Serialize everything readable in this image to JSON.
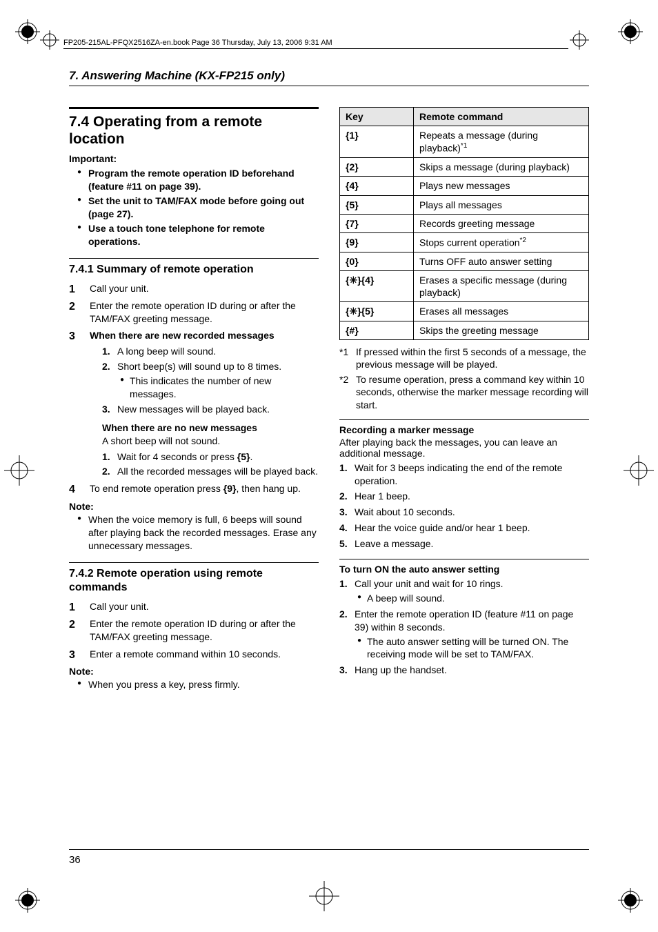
{
  "header": "FP205-215AL-PFQX2516ZA-en.book  Page 36  Thursday, July 13, 2006  9:31 AM",
  "chapter": "7. Answering Machine (KX-FP215 only)",
  "section": {
    "title": "7.4 Operating from a remote location",
    "important_label": "Important:",
    "important": [
      "Program the remote operation ID beforehand (feature #11 on page 39).",
      "Set the unit to TAM/FAX mode before going out (page 27).",
      "Use a touch tone telephone for remote operations."
    ]
  },
  "sub741": {
    "title": "7.4.1 Summary of remote operation",
    "s1": "Call your unit.",
    "s2": "Enter the remote operation ID during or after the TAM/FAX greeting message.",
    "s3_title": "When there are new recorded messages",
    "s3_1": "A long beep will sound.",
    "s3_2": "Short beep(s) will sound up to 8 times.",
    "s3_2_b": "This indicates the number of new messages.",
    "s3_3": "New messages will be played back.",
    "none_title": "When there are no new messages",
    "none_desc": "A short beep will not sound.",
    "none_1a": "Wait for 4 seconds or press ",
    "none_1b": ".",
    "none_2": "All the recorded messages will be played back.",
    "s4a": "To end remote operation press ",
    "s4b": ", then hang up.",
    "note_label": "Note:",
    "note1": "When the voice memory is full, 6 beeps will sound after playing back the recorded messages. Erase any unnecessary messages."
  },
  "sub742": {
    "title": "7.4.2 Remote operation using remote commands",
    "s1": "Call your unit.",
    "s2": "Enter the remote operation ID during or after the TAM/FAX greeting message.",
    "s3": "Enter a remote command within 10 seconds.",
    "note_label": "Note:",
    "note1": "When you press a key, press firmly."
  },
  "table": {
    "h1": "Key",
    "h2": "Remote command",
    "rows": [
      {
        "k": "1",
        "c": "Repeats a message (during playback)",
        "sup": "*1"
      },
      {
        "k": "2",
        "c": "Skips a message (during playback)"
      },
      {
        "k": "4",
        "c": "Plays new messages"
      },
      {
        "k": "5",
        "c": "Plays all messages"
      },
      {
        "k": "7",
        "c": "Records greeting message"
      },
      {
        "k": "9",
        "c": "Stops current operation",
        "sup": "*2"
      },
      {
        "k": "0",
        "c": "Turns OFF auto answer setting"
      },
      {
        "k": "*|4",
        "c": "Erases a specific message (during playback)"
      },
      {
        "k": "*|5",
        "c": "Erases all messages"
      },
      {
        "k": "#",
        "c": "Skips the greeting message"
      }
    ]
  },
  "footnotes": {
    "f1m": "*1",
    "f1": "If pressed within the first 5 seconds of a message, the previous message will be played.",
    "f2m": "*2",
    "f2": "To resume operation, press a command key within 10 seconds, otherwise the marker message recording will start."
  },
  "marker": {
    "title": "Recording a marker message",
    "desc": "After playing back the messages, you can leave an additional message.",
    "s1": "Wait for 3 beeps indicating the end of the remote operation.",
    "s2": "Hear 1 beep.",
    "s3": "Wait about 10 seconds.",
    "s4": "Hear the voice guide and/or hear 1 beep.",
    "s5": "Leave a message."
  },
  "auto": {
    "title": "To turn ON the auto answer setting",
    "s1": "Call your unit and wait for 10 rings.",
    "s1b": "A beep will sound.",
    "s2": "Enter the remote operation ID (feature #11 on page 39) within 8 seconds.",
    "s2b": "The auto answer setting will be turned ON. The receiving mode will be set to TAM/FAX.",
    "s3": "Hang up the handset."
  },
  "page_number": "36",
  "keys": {
    "five": "5",
    "nine": "9",
    "star": "*",
    "hash": "#"
  },
  "colors": {
    "ink": "#000000",
    "bg": "#ffffff",
    "th_bg": "#e6e6e6"
  }
}
